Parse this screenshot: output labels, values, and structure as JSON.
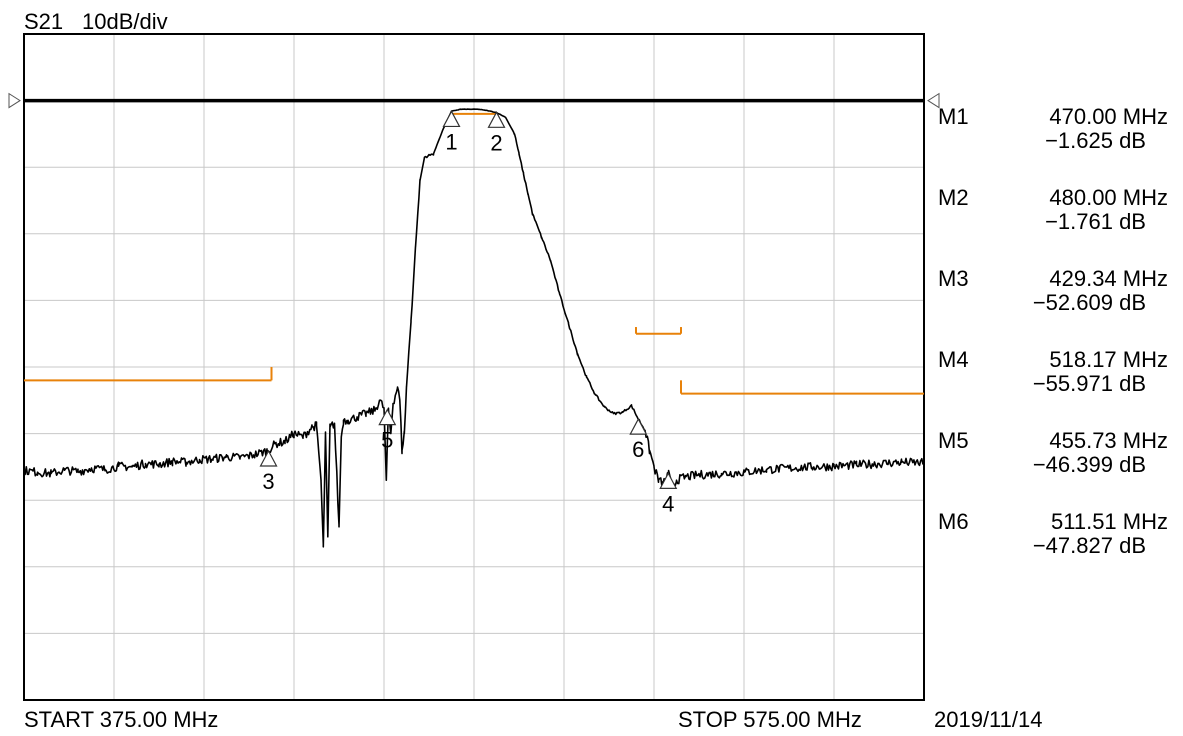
{
  "header": {
    "trace": "S21",
    "scale": "10dB/div"
  },
  "footer": {
    "start": "START  375.00 MHz",
    "stop": "STOP  575.00 MHz",
    "date": "2019/11/14"
  },
  "markers": [
    {
      "id": "M1",
      "num": "1",
      "freq": "470.00 MHz",
      "level": "−1.625 dB",
      "x": 470.0,
      "y": -1.625
    },
    {
      "id": "M2",
      "num": "2",
      "freq": "480.00 MHz",
      "level": "−1.761 dB",
      "x": 480.0,
      "y": -1.761
    },
    {
      "id": "M3",
      "num": "3",
      "freq": "429.34 MHz",
      "level": "−52.609 dB",
      "x": 429.34,
      "y": -52.609
    },
    {
      "id": "M4",
      "num": "4",
      "freq": "518.17 MHz",
      "level": "−55.971 dB",
      "x": 518.17,
      "y": -55.971
    },
    {
      "id": "M5",
      "num": "5",
      "freq": "455.73 MHz",
      "level": "−46.399 dB",
      "x": 455.73,
      "y": -46.399
    },
    {
      "id": "M6",
      "num": "6",
      "freq": "511.51 MHz",
      "level": "−47.827 dB",
      "x": 511.51,
      "y": -47.827
    }
  ],
  "colors": {
    "trace": "#000000",
    "grid": "#c8c8c8",
    "limit": "#e8820a",
    "reference": "#000000"
  },
  "chart_data": {
    "type": "line",
    "title": "S21  10dB/div",
    "xlabel": "",
    "ylabel": "",
    "xlim": [
      375,
      575
    ],
    "ylim": [
      -90,
      10
    ],
    "grid": true,
    "x_divisions": 10,
    "y_divisions": 10,
    "reference_level": 0,
    "series": [
      {
        "name": "S21",
        "x": [
          375,
          378,
          381,
          384,
          387,
          390,
          393,
          396,
          399,
          402,
          405,
          408,
          411,
          414,
          417,
          420,
          423,
          426,
          429,
          431,
          433,
          435,
          437,
          439,
          440,
          441,
          441.5,
          442,
          442.5,
          443,
          444,
          445,
          445.5,
          446,
          447,
          449,
          451,
          453,
          454,
          455,
          455.5,
          456,
          456.5,
          457,
          458,
          458.5,
          459,
          459.5,
          460,
          461,
          462,
          463,
          464,
          466,
          468,
          470,
          472,
          474,
          476,
          478,
          480,
          482,
          484,
          485,
          486,
          487,
          488,
          490,
          492,
          494,
          496,
          498,
          500,
          502,
          504,
          506,
          508,
          510,
          511.5,
          513,
          514,
          515,
          516,
          517,
          518.2,
          519,
          520,
          522,
          525,
          530,
          535,
          540,
          545,
          550,
          555,
          560,
          565,
          570,
          575
        ],
        "y": [
          -55.5,
          -55.8,
          -56.0,
          -55.5,
          -55.7,
          -55.2,
          -55.4,
          -54.9,
          -55.0,
          -54.5,
          -54.6,
          -54.2,
          -54.3,
          -53.9,
          -53.8,
          -53.5,
          -53.6,
          -53.2,
          -52.6,
          -51.5,
          -51.2,
          -50.0,
          -50.5,
          -49.0,
          -48.8,
          -57.0,
          -67.0,
          -50.0,
          -65.5,
          -49.0,
          -48.5,
          -64.0,
          -50.5,
          -48.0,
          -48.0,
          -47.5,
          -47.0,
          -46.5,
          -45.0,
          -46.2,
          -57.0,
          -46.4,
          -50.0,
          -45.5,
          -43.0,
          -45.0,
          -52.5,
          -50.0,
          -43.0,
          -33.0,
          -22.0,
          -12.0,
          -8.5,
          -8.0,
          -4.5,
          -1.6,
          -1.3,
          -1.3,
          -1.3,
          -1.5,
          -1.8,
          -2.5,
          -5.0,
          -8.0,
          -11.0,
          -14.0,
          -17.0,
          -20.5,
          -24.0,
          -29.0,
          -33.5,
          -38.0,
          -41.5,
          -44.2,
          -46.0,
          -47.0,
          -46.8,
          -45.8,
          -47.8,
          -49.5,
          -52.5,
          -55.0,
          -57.0,
          -57.5,
          -56.0,
          -58.0,
          -57.0,
          -56.5,
          -56.2,
          -56.0,
          -55.8,
          -55.4,
          -55.2,
          -55.0,
          -54.9,
          -54.7,
          -54.5,
          -54.3,
          -54.4
        ]
      }
    ],
    "limit_lines": [
      {
        "x": [
          375,
          430
        ],
        "y": -42
      },
      {
        "x": [
          430,
          430
        ],
        "y": [
          -42,
          -40
        ]
      },
      {
        "x": [
          511,
          521
        ],
        "y": -35
      },
      {
        "x": [
          511,
          511
        ],
        "y": [
          -35,
          -34
        ]
      },
      {
        "x": [
          521,
          521
        ],
        "y": [
          -35,
          -34
        ]
      },
      {
        "x": [
          521,
          575
        ],
        "y": -44
      },
      {
        "x": [
          521,
          521
        ],
        "y": [
          -44,
          -42
        ]
      },
      {
        "x": [
          470,
          480
        ],
        "y": -2.0
      }
    ]
  }
}
